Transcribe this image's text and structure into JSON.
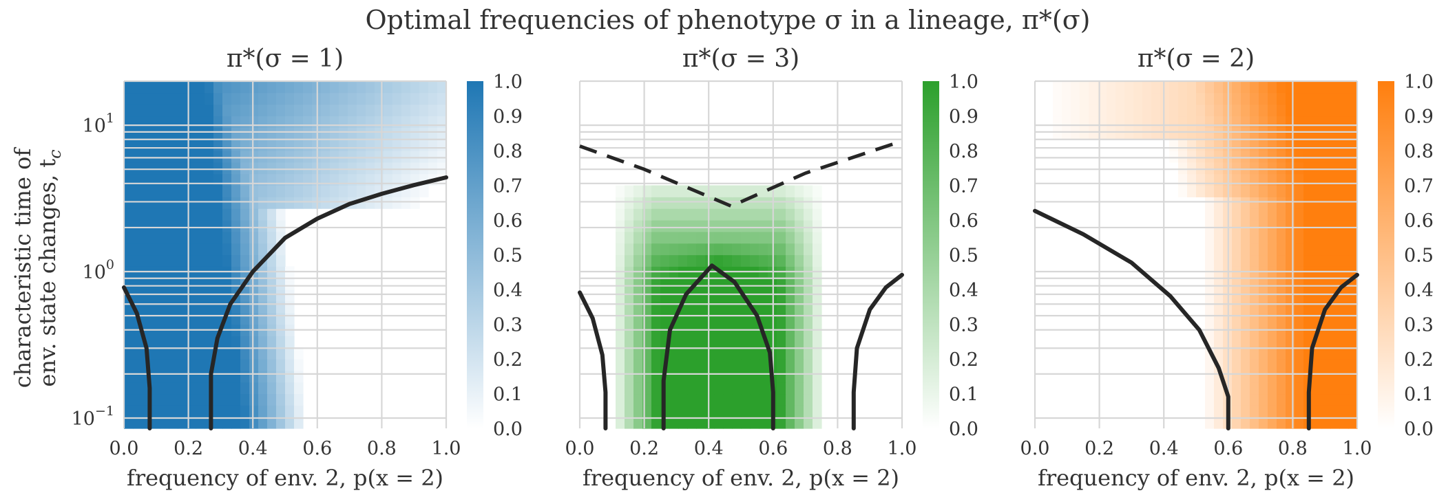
{
  "figure_title": "Optimal frequencies of phenotype σ in a lineage, π*(σ)",
  "y_axis_label_line1": "characteristic time of",
  "y_axis_label_line2": "env. state changes, t",
  "y_axis_label_sub": "c",
  "chart_data": [
    {
      "type": "heatmap",
      "title": "π*(σ = 1)",
      "xlabel": "frequency of env. 2, p(x = 2)",
      "ylabel": "characteristic time of env. state changes, t_c",
      "xlim": [
        0.0,
        1.0
      ],
      "ylim": [
        0.085,
        20
      ],
      "yscale": "log",
      "xticks": [
        "0.0",
        "0.2",
        "0.4",
        "0.6",
        "0.8",
        "1.0"
      ],
      "yticks": [
        {
          "base": "10",
          "exp": "1",
          "value": 10
        },
        {
          "base": "10",
          "exp": "0",
          "value": 1
        },
        {
          "base": "10",
          "exp": "−1",
          "value": 0.1
        }
      ],
      "colorbar_ticks": [
        "0.0",
        "0.1",
        "0.2",
        "0.3",
        "0.4",
        "0.5",
        "0.6",
        "0.7",
        "0.8",
        "0.9",
        "1.0"
      ],
      "color": "#1f77b4",
      "phase_boundaries": [
        {
          "style": "solid",
          "points": [
            [
              0.0,
              0.78
            ],
            [
              0.04,
              0.52
            ],
            [
              0.07,
              0.3
            ],
            [
              0.08,
              0.16
            ],
            [
              0.08,
              0.085
            ]
          ]
        },
        {
          "style": "solid",
          "points": [
            [
              0.27,
              0.085
            ],
            [
              0.27,
              0.2
            ],
            [
              0.29,
              0.35
            ],
            [
              0.33,
              0.6
            ],
            [
              0.4,
              1.0
            ],
            [
              0.5,
              1.7
            ],
            [
              0.6,
              2.3
            ],
            [
              0.7,
              2.9
            ],
            [
              0.8,
              3.4
            ],
            [
              0.9,
              3.9
            ],
            [
              1.0,
              4.4
            ]
          ]
        }
      ]
    },
    {
      "type": "heatmap",
      "title": "π*(σ = 3)",
      "xlabel": "frequency of env. 2, p(x = 2)",
      "ylabel": "",
      "xlim": [
        0.0,
        1.0
      ],
      "ylim": [
        0.085,
        20
      ],
      "yscale": "log",
      "xticks": [
        "0.0",
        "0.2",
        "0.4",
        "0.6",
        "0.8",
        "1.0"
      ],
      "yticks": [],
      "colorbar_ticks": [
        "0.0",
        "0.1",
        "0.2",
        "0.3",
        "0.4",
        "0.5",
        "0.6",
        "0.7",
        "0.8",
        "0.9",
        "1.0"
      ],
      "color": "#2ca02c",
      "phase_boundaries": [
        {
          "style": "solid",
          "points": [
            [
              0.0,
              0.72
            ],
            [
              0.04,
              0.48
            ],
            [
              0.07,
              0.27
            ],
            [
              0.08,
              0.15
            ],
            [
              0.08,
              0.085
            ]
          ]
        },
        {
          "style": "solid",
          "points": [
            [
              0.26,
              0.085
            ],
            [
              0.26,
              0.18
            ],
            [
              0.28,
              0.4
            ],
            [
              0.33,
              0.7
            ],
            [
              0.41,
              1.1
            ],
            [
              0.48,
              0.85
            ],
            [
              0.55,
              0.5
            ],
            [
              0.59,
              0.28
            ],
            [
              0.6,
              0.15
            ],
            [
              0.6,
              0.085
            ]
          ]
        },
        {
          "style": "solid",
          "points": [
            [
              0.85,
              0.085
            ],
            [
              0.85,
              0.15
            ],
            [
              0.86,
              0.3
            ],
            [
              0.9,
              0.55
            ],
            [
              0.95,
              0.78
            ],
            [
              1.0,
              0.95
            ]
          ]
        },
        {
          "style": "dashed",
          "points": [
            [
              0.0,
              7.2
            ],
            [
              0.2,
              5.0
            ],
            [
              0.47,
              2.8
            ],
            [
              0.7,
              4.7
            ],
            [
              1.0,
              7.8
            ]
          ]
        }
      ]
    },
    {
      "type": "heatmap",
      "title": "π*(σ = 2)",
      "xlabel": "frequency of env. 2, p(x = 2)",
      "ylabel": "",
      "xlim": [
        0.0,
        1.0
      ],
      "ylim": [
        0.085,
        20
      ],
      "yscale": "log",
      "xticks": [
        "0.0",
        "0.2",
        "0.4",
        "0.6",
        "0.8",
        "1.0"
      ],
      "yticks": [],
      "colorbar_ticks": [
        "0.0",
        "0.1",
        "0.2",
        "0.3",
        "0.4",
        "0.5",
        "0.6",
        "0.7",
        "0.8",
        "0.9",
        "1.0"
      ],
      "color": "#ff7f0e",
      "phase_boundaries": [
        {
          "style": "solid",
          "points": [
            [
              0.0,
              2.6
            ],
            [
              0.15,
              1.8
            ],
            [
              0.3,
              1.15
            ],
            [
              0.42,
              0.68
            ],
            [
              0.51,
              0.4
            ],
            [
              0.57,
              0.22
            ],
            [
              0.6,
              0.14
            ],
            [
              0.6,
              0.085
            ]
          ]
        },
        {
          "style": "solid",
          "points": [
            [
              0.85,
              0.085
            ],
            [
              0.85,
              0.15
            ],
            [
              0.86,
              0.3
            ],
            [
              0.9,
              0.55
            ],
            [
              0.95,
              0.78
            ],
            [
              1.0,
              0.95
            ]
          ]
        }
      ]
    }
  ]
}
